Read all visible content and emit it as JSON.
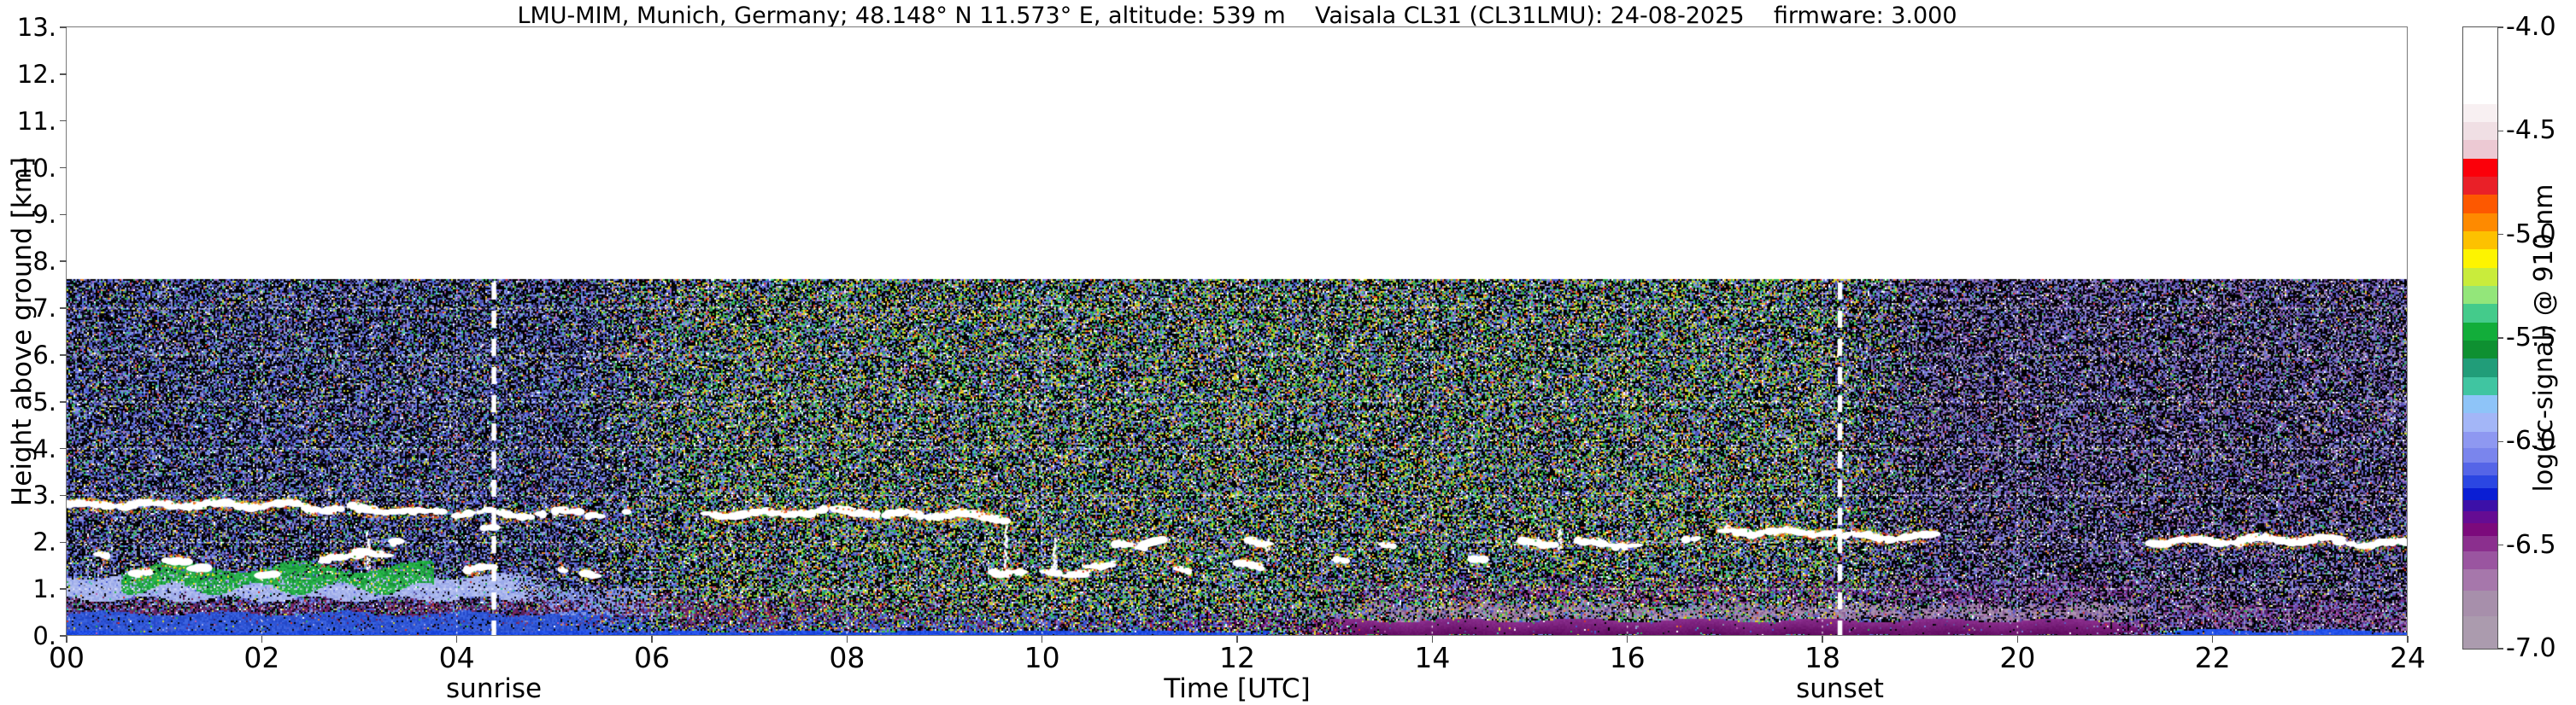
{
  "title": "LMU-MIM, Munich, Germany; 48.148° N 11.573° E, altitude: 539 m    Vaisala CL31 (CL31LMU): 24-08-2025    firmware: 3.000",
  "axes": {
    "x_label": "Time [UTC]",
    "y_label": "Height above ground [km]",
    "x_range_hours": [
      0,
      24
    ],
    "y_range_km": [
      0,
      13
    ],
    "x_ticks": [
      "00",
      "02",
      "04",
      "06",
      "08",
      "10",
      "12",
      "14",
      "16",
      "18",
      "20",
      "22",
      "24"
    ],
    "y_ticks": [
      "0.",
      "1.",
      "2.",
      "3.",
      "4.",
      "5.",
      "6.",
      "7.",
      "8.",
      "9.",
      "10.",
      "11.",
      "12.",
      "13."
    ],
    "grid": "white dotted, every 2 h and every 1 km, drawn only over the data region"
  },
  "colorbar": {
    "label": "log(rc-signal) @ 910 nm",
    "tick_labels": [
      "-4.0",
      "-4.5",
      "-5.0",
      "-5.5",
      "-6.0",
      "-6.5",
      "-7.0"
    ],
    "value_range": [
      -4.0,
      -7.0
    ],
    "stops_top_to_bottom": [
      {
        "c": "#ffffff",
        "f": 0.13
      },
      {
        "c": "#f8f0f2",
        "f": 0.031
      },
      {
        "c": "#f0dfe4",
        "f": 0.031
      },
      {
        "c": "#ecc9d3",
        "f": 0.031
      },
      {
        "c": "#fb000a",
        "f": 0.031
      },
      {
        "c": "#e92028",
        "f": 0.031
      },
      {
        "c": "#fd5800",
        "f": 0.031
      },
      {
        "c": "#fe8a00",
        "f": 0.031
      },
      {
        "c": "#fdc100",
        "f": 0.031
      },
      {
        "c": "#fdf400",
        "f": 0.031
      },
      {
        "c": "#c9ec3b",
        "f": 0.031
      },
      {
        "c": "#93e67a",
        "f": 0.031
      },
      {
        "c": "#44cb8b",
        "f": 0.031
      },
      {
        "c": "#12ad3a",
        "f": 0.031
      },
      {
        "c": "#0e9031",
        "f": 0.031
      },
      {
        "c": "#219d79",
        "f": 0.031
      },
      {
        "c": "#40c5a1",
        "f": 0.031
      },
      {
        "c": "#8ec4f8",
        "f": 0.031
      },
      {
        "c": "#a3b6f7",
        "f": 0.031
      },
      {
        "c": "#8e98f1",
        "f": 0.028
      },
      {
        "c": "#7a85ed",
        "f": 0.024
      },
      {
        "c": "#5565e7",
        "f": 0.022
      },
      {
        "c": "#2b46e2",
        "f": 0.022
      },
      {
        "c": "#0a1ed4",
        "f": 0.02
      },
      {
        "c": "#3c10a8",
        "f": 0.02
      },
      {
        "c": "#650c93",
        "f": 0.02
      },
      {
        "c": "#7c0a7c",
        "f": 0.021
      },
      {
        "c": "#8b2f8e",
        "f": 0.027
      },
      {
        "c": "#9a55a0",
        "f": 0.03
      },
      {
        "c": "#a677ab",
        "f": 0.036
      },
      {
        "c": "#a78fab",
        "f": 0.044
      },
      {
        "c": "#ab9bae",
        "f": 0.055
      }
    ]
  },
  "annotations": {
    "sunrise": {
      "label": "sunrise",
      "time_hours": 4.38
    },
    "sunset": {
      "label": "sunset",
      "time_hours": 18.18
    }
  },
  "chart_data": {
    "type": "heatmap",
    "xlabel": "Time [UTC]",
    "ylabel": "Height above ground [km]",
    "xlim": [
      0,
      24
    ],
    "ylim": [
      0,
      13
    ],
    "data_top_km": 7.62,
    "quantity": "log(rc-signal) @ 910 nm, ceilometer attenuated backscatter",
    "cloud_base_segments_t0_t1_km_density": [
      [
        0.0,
        1.0,
        2.8,
        0.92
      ],
      [
        1.02,
        2.45,
        2.8,
        0.95
      ],
      [
        2.45,
        3.0,
        2.73,
        0.75
      ],
      [
        3.0,
        3.55,
        2.68,
        0.7
      ],
      [
        3.55,
        4.35,
        2.63,
        0.5
      ],
      [
        4.4,
        4.9,
        2.6,
        0.45
      ],
      [
        4.95,
        5.3,
        2.63,
        0.55
      ],
      [
        5.35,
        5.75,
        2.62,
        0.4
      ],
      [
        6.55,
        7.4,
        2.6,
        0.85
      ],
      [
        7.4,
        8.3,
        2.65,
        0.9
      ],
      [
        8.3,
        9.3,
        2.58,
        0.85
      ],
      [
        9.3,
        9.65,
        2.52,
        0.6
      ],
      [
        17.0,
        18.2,
        2.22,
        0.95
      ],
      [
        18.2,
        19.15,
        2.12,
        0.9
      ],
      [
        21.35,
        22.3,
        2.02,
        0.85
      ],
      [
        22.3,
        23.3,
        2.05,
        0.9
      ],
      [
        23.3,
        24.0,
        1.98,
        0.8
      ],
      [
        0.32,
        0.45,
        1.75,
        0.7
      ],
      [
        0.7,
        0.88,
        1.32,
        0.8
      ],
      [
        1.02,
        1.25,
        1.62,
        0.7
      ],
      [
        1.3,
        1.45,
        1.45,
        0.5
      ],
      [
        2.0,
        2.12,
        1.32,
        0.6
      ],
      [
        2.62,
        3.0,
        1.68,
        0.8
      ],
      [
        3.0,
        3.3,
        1.75,
        0.8
      ],
      [
        3.32,
        3.42,
        2.05,
        0.5
      ],
      [
        4.1,
        4.35,
        1.42,
        0.7
      ],
      [
        4.28,
        4.4,
        2.25,
        0.5
      ],
      [
        4.95,
        5.15,
        1.35,
        0.6
      ],
      [
        5.28,
        5.42,
        1.35,
        0.5
      ],
      [
        9.5,
        9.8,
        1.38,
        0.7
      ],
      [
        10.05,
        10.45,
        1.35,
        0.8
      ],
      [
        10.45,
        10.7,
        1.45,
        0.6
      ],
      [
        10.75,
        11.05,
        1.95,
        0.7
      ],
      [
        11.05,
        11.3,
        2.0,
        0.6
      ],
      [
        11.38,
        11.52,
        1.38,
        0.5
      ],
      [
        12.0,
        12.3,
        1.48,
        0.75
      ],
      [
        12.12,
        12.3,
        1.98,
        0.6
      ],
      [
        13.02,
        13.12,
        1.65,
        0.5
      ],
      [
        13.48,
        13.6,
        1.9,
        0.4
      ],
      [
        14.4,
        14.52,
        1.7,
        0.4
      ],
      [
        14.92,
        15.3,
        2.0,
        0.65
      ],
      [
        15.5,
        15.85,
        1.98,
        0.6
      ],
      [
        15.88,
        16.12,
        1.95,
        0.55
      ],
      [
        16.6,
        16.78,
        2.08,
        0.5
      ]
    ],
    "precip_streaks_t_h0_h1": [
      [
        3.08,
        1.45,
        2.25
      ],
      [
        9.62,
        1.4,
        2.5
      ],
      [
        10.12,
        1.5,
        2.1
      ],
      [
        12.3,
        1.6,
        2.1
      ],
      [
        15.3,
        1.9,
        2.3
      ]
    ],
    "layers": [
      {
        "kind": "solid",
        "t0": 0.55,
        "t1": 3.75,
        "h0": 1.02,
        "h1": 1.5,
        "colors": [
          "#1ea43e",
          "#25bb4a",
          "#17903a",
          "#2fae50"
        ],
        "density": 0.82,
        "wobble": 0.13,
        "specks": [
          "#ffe01f",
          "#f5f5f5",
          "#8fd845"
        ],
        "speckp": 0.06,
        "note": "residual-layer aerosol, green"
      },
      {
        "kind": "solid",
        "t0": 0.0,
        "t1": 5.0,
        "h0": 0.8,
        "h1": 1.3,
        "colors": [
          "#a8b5ed",
          "#9aa9e9",
          "#b4c0f0"
        ],
        "density": 0.88,
        "wobble": 0.07,
        "fade": [
          0,
          0,
          4.5,
          5.0
        ],
        "note": "light periwinkle nocturnal layer"
      },
      {
        "kind": "solid",
        "t0": 4.8,
        "t1": 6.3,
        "h0": 0.45,
        "h1": 1.05,
        "colors": [
          "#8fa3ea",
          "#7a90e0"
        ],
        "density": 0.35,
        "fade": [
          4.8,
          4.9,
          5.8,
          6.3
        ]
      },
      {
        "kind": "solid",
        "t0": 0.0,
        "t1": 12.55,
        "h0": 0.0,
        "h1": 0.105,
        "colors": [
          "#1c4ae4",
          "#2a58f0",
          "#1540d6"
        ],
        "density": 0.97,
        "wobble": 0.025,
        "fade": [
          0,
          0,
          12.1,
          12.55
        ],
        "note": "bright blue surface strip"
      },
      {
        "kind": "solid",
        "t0": 21.3,
        "t1": 24.0,
        "h0": 0.0,
        "h1": 0.125,
        "colors": [
          "#1c4ae4",
          "#2a58f0"
        ],
        "density": 0.95,
        "wobble": 0.035,
        "fade": [
          21.3,
          21.7,
          24,
          24
        ]
      },
      {
        "kind": "grad",
        "t0": 12.45,
        "t1": 21.5,
        "h0": 0.0,
        "h1": 0.35,
        "colors": [
          "#5e085e",
          "#8b2f8e"
        ],
        "density": 0.96,
        "wobble": 0.05,
        "fade": [
          12.45,
          13.3,
          20.9,
          21.5
        ],
        "note": "afternoon magenta low signal"
      },
      {
        "kind": "solid",
        "t0": 0.0,
        "t1": 6.3,
        "h0": 0.05,
        "h1": 0.5,
        "colors": [
          "#2e55d6",
          "#3a63e0",
          "#2448c8"
        ],
        "density": 0.85,
        "wobble": 0.05,
        "fade": [
          0,
          0,
          5.0,
          6.3
        ]
      },
      {
        "kind": "speckle",
        "t0": 0.0,
        "t1": 9.6,
        "h0": 0.26,
        "h1": 0.88,
        "colors": [
          "#7a2253",
          "#63256f",
          "#8a3060",
          "#552060"
        ],
        "density": 0.42,
        "wobble": 0.08,
        "fade": [
          0,
          0,
          6.5,
          9.6
        ],
        "note": "maroon speckle band"
      },
      {
        "kind": "speckle",
        "t0": 12.45,
        "t1": 21.5,
        "h0": 0.33,
        "h1": 0.74,
        "colors": [
          "#a489a9",
          "#9a79a2",
          "#8b5f96",
          "#b094b2"
        ],
        "density": 0.62,
        "wobble": 0.06,
        "fade": [
          12.45,
          13.6,
          21.0,
          21.5
        ],
        "note": "grey-mauve band"
      },
      {
        "kind": "speckle",
        "t0": 12.3,
        "t1": 21.5,
        "h0": 0.7,
        "h1": 1.28,
        "colors": [
          "#7c2f86",
          "#5e2470",
          "#8b2f8e"
        ],
        "density": 0.3,
        "wobble": 0.1,
        "fade": [
          12.3,
          13.6,
          21.2,
          21.5
        ]
      },
      {
        "kind": "speckle",
        "t0": 6.2,
        "t1": 12.5,
        "h0": 0.07,
        "h1": 0.55,
        "colors": [
          "#2e55d6",
          "#5a3a9a",
          "#7a2253",
          "#3a63e0"
        ],
        "density": 0.38,
        "fade": [
          6.2,
          6.3,
          10.5,
          12.5
        ]
      },
      {
        "kind": "speckle",
        "t0": 10.4,
        "t1": 12.6,
        "h0": 0.0,
        "h1": 0.6,
        "colors": [
          "#7c2f86",
          "#6f0a70"
        ],
        "density": 0.22,
        "fade": [
          10.4,
          11.5,
          12.6,
          12.6
        ]
      },
      {
        "kind": "speckle",
        "t0": 21.3,
        "t1": 24.0,
        "h0": 0.1,
        "h1": 0.92,
        "colors": [
          "#6f2a7e",
          "#8b2f8e",
          "#a489a9",
          "#5e2470"
        ],
        "density": 0.42,
        "wobble": 0.07,
        "fade": [
          21.3,
          21.8,
          24,
          24
        ]
      }
    ],
    "noise_palettes": {
      "night": [
        [
          "#000000",
          30
        ],
        [
          "#0b0b16",
          14
        ],
        [
          "#4a5cd4",
          13
        ],
        [
          "#7585e0",
          10
        ],
        [
          "#9aa6ec",
          5
        ],
        [
          "#544a9e",
          7
        ],
        [
          "#3a2a6e",
          6
        ],
        [
          "#8d8fae",
          5
        ],
        [
          "#2fae50",
          3.5
        ],
        [
          "#3fc9a8",
          2
        ],
        [
          "#cfd435",
          2.5
        ],
        [
          "#e8852a",
          0.7
        ],
        [
          "#d93425",
          0.7
        ],
        [
          "#ffffff",
          1.2
        ],
        [
          "#b65cb0",
          1.2
        ]
      ],
      "day": [
        [
          "#000000",
          28
        ],
        [
          "#0b0e14",
          10
        ],
        [
          "#4a5cd4",
          9
        ],
        [
          "#7585e0",
          7
        ],
        [
          "#2fae50",
          9
        ],
        [
          "#55c53a",
          4
        ],
        [
          "#3fc9a8",
          3.5
        ],
        [
          "#cfd435",
          6
        ],
        [
          "#e8d21f",
          3
        ],
        [
          "#e8852a",
          2.5
        ],
        [
          "#d93425",
          2.2
        ],
        [
          "#ffffff",
          2.5
        ],
        [
          "#9aa6ec",
          4
        ],
        [
          "#544a9e",
          4
        ],
        [
          "#b65cb0",
          1.5
        ],
        [
          "#8d8fae",
          3
        ]
      ],
      "evening": [
        [
          "#000000",
          30
        ],
        [
          "#0b0b14",
          14
        ],
        [
          "#5a5fc8",
          10
        ],
        [
          "#7a7fd8",
          8
        ],
        [
          "#9a93c8",
          5
        ],
        [
          "#6a4a9e",
          7
        ],
        [
          "#4a2a7e",
          6
        ],
        [
          "#9a86a8",
          6
        ],
        [
          "#2fae50",
          1.5
        ],
        [
          "#3fc9a8",
          1.2
        ],
        [
          "#cfd435",
          1
        ],
        [
          "#d93425",
          0.5
        ],
        [
          "#e8852a",
          0.4
        ],
        [
          "#ffffff",
          1.5
        ],
        [
          "#b65cb0",
          2
        ]
      ]
    },
    "regimes": {
      "night_until": 5.2,
      "day_from": 6.6,
      "day_until": 17.8,
      "evening_from": 19.2
    }
  }
}
